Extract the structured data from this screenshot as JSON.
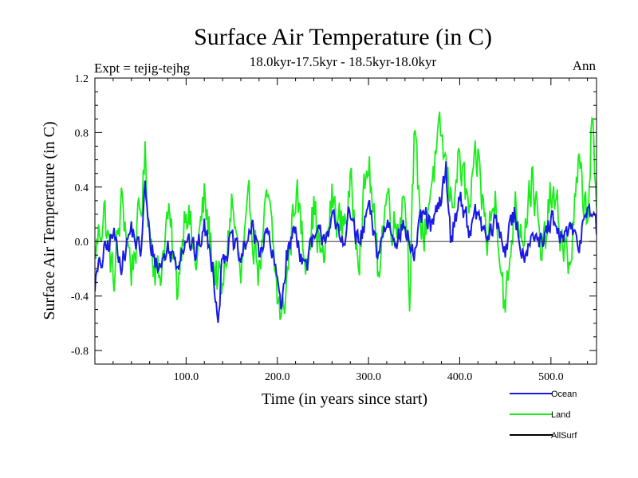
{
  "chart_data": {
    "type": "line",
    "title": "Surface Air Temperature (in C)",
    "subtitle": "18.0kyr-17.5kyr - 18.5kyr-18.0kyr",
    "left_note": "Expt = tejig-tejhg",
    "right_note": "Ann",
    "xlabel": "Time (in years since start)",
    "ylabel": "Surface Air Temperature (in C)",
    "xlim": [
      0,
      550
    ],
    "ylim": [
      -0.9,
      1.2
    ],
    "x_ticks": [
      100,
      200,
      300,
      400,
      500
    ],
    "x_tick_labels": [
      "100.0",
      "200.0",
      "300.0",
      "400.0",
      "500.0"
    ],
    "y_ticks": [
      1.2,
      0.8,
      0.4,
      0.0,
      -0.4,
      -0.8
    ],
    "y_tick_labels": [
      "1.2",
      "0.8",
      "0.4",
      "0.0",
      "-0.4",
      "-0.8"
    ],
    "zero_line": 0.0,
    "colors": {
      "Ocean": "#1a1ae6",
      "Land": "#1aee1a",
      "AllSurf": "#000000"
    },
    "legend": [
      "Ocean",
      "Land",
      "AllSurf"
    ],
    "series": [
      {
        "name": "Land",
        "x": [
          0,
          10,
          20,
          30,
          40,
          50,
          55,
          60,
          70,
          80,
          90,
          100,
          110,
          120,
          130,
          140,
          150,
          160,
          170,
          180,
          190,
          200,
          205,
          210,
          220,
          230,
          240,
          250,
          260,
          270,
          280,
          290,
          300,
          310,
          320,
          330,
          340,
          345,
          350,
          360,
          370,
          380,
          390,
          400,
          410,
          420,
          430,
          440,
          450,
          460,
          470,
          480,
          490,
          500,
          510,
          520,
          530,
          540,
          545,
          550
        ],
        "values": [
          -0.1,
          0.25,
          -0.3,
          0.3,
          -0.2,
          0.2,
          0.6,
          0.1,
          -0.3,
          0.2,
          -0.35,
          0.35,
          -0.2,
          0.3,
          -0.15,
          -0.4,
          0.3,
          -0.3,
          0.25,
          -0.2,
          0.3,
          -0.4,
          -0.6,
          -0.3,
          0.4,
          -0.1,
          0.25,
          -0.2,
          0.3,
          0.1,
          0.35,
          0.0,
          0.6,
          -0.2,
          0.35,
          0.1,
          0.4,
          -0.3,
          0.7,
          0.0,
          0.5,
          0.75,
          0.3,
          0.6,
          0.2,
          0.6,
          0.0,
          0.35,
          -0.55,
          0.3,
          0.1,
          0.5,
          -0.2,
          0.35,
          0.1,
          -0.2,
          0.5,
          0.2,
          0.9,
          0.1
        ]
      },
      {
        "name": "Ocean",
        "x": [
          0,
          10,
          20,
          30,
          40,
          50,
          55,
          60,
          70,
          80,
          90,
          100,
          110,
          120,
          130,
          135,
          140,
          150,
          160,
          170,
          180,
          190,
          200,
          205,
          210,
          220,
          230,
          240,
          250,
          260,
          270,
          280,
          290,
          300,
          310,
          320,
          330,
          340,
          350,
          360,
          370,
          380,
          385,
          390,
          400,
          410,
          420,
          430,
          440,
          450,
          460,
          470,
          480,
          490,
          500,
          510,
          520,
          530,
          540,
          545,
          550
        ],
        "values": [
          -0.3,
          -0.1,
          0.05,
          -0.15,
          0.1,
          -0.1,
          0.4,
          0.0,
          -0.2,
          -0.05,
          -0.15,
          0.05,
          -0.1,
          0.1,
          -0.2,
          -0.55,
          -0.1,
          0.0,
          -0.15,
          0.1,
          -0.05,
          0.05,
          -0.3,
          -0.45,
          -0.1,
          0.1,
          -0.2,
          0.0,
          0.05,
          0.15,
          0.0,
          0.2,
          -0.05,
          0.25,
          -0.1,
          0.15,
          0.05,
          0.1,
          -0.1,
          0.2,
          0.1,
          0.3,
          0.55,
          0.0,
          0.35,
          0.1,
          0.2,
          0.0,
          0.15,
          -0.05,
          0.2,
          -0.1,
          0.1,
          -0.05,
          0.15,
          0.0,
          0.1,
          -0.05,
          0.3,
          0.2,
          0.05
        ]
      },
      {
        "name": "AllSurf",
        "x": [],
        "values": []
      }
    ]
  }
}
